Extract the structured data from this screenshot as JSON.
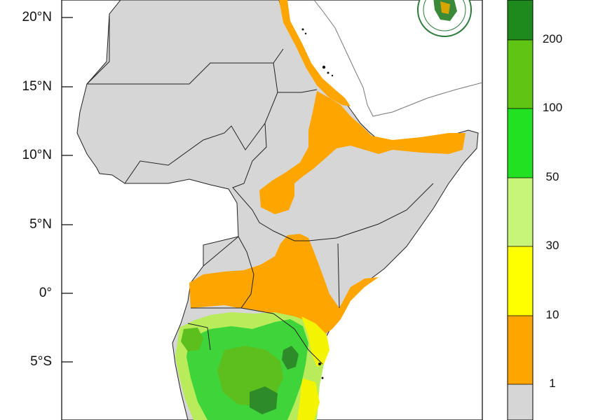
{
  "map": {
    "latitude_labels": [
      "20°N",
      "15°N",
      "10°N",
      "5°N",
      "0°",
      "5°S"
    ]
  },
  "legend": {
    "tick_labels": [
      "200",
      "100",
      "50",
      "30",
      "10",
      "1"
    ],
    "colors": [
      "#1e8a1e",
      "#5fc414",
      "#22e022",
      "#c6f57a",
      "#ffff00",
      "#ffa500",
      "#d6d6d6"
    ]
  },
  "logo": {
    "name": "logo-emblem-icon"
  },
  "colors": {
    "land_gray": "#d6d6d6",
    "border": "#333333",
    "orange": "#ffa500",
    "yellow": "#f4f400",
    "light_green": "#b8ec5a",
    "bright_green": "#3fd43a",
    "mid_green": "#5cbf1e",
    "dark_green": "#2e8b2a"
  }
}
